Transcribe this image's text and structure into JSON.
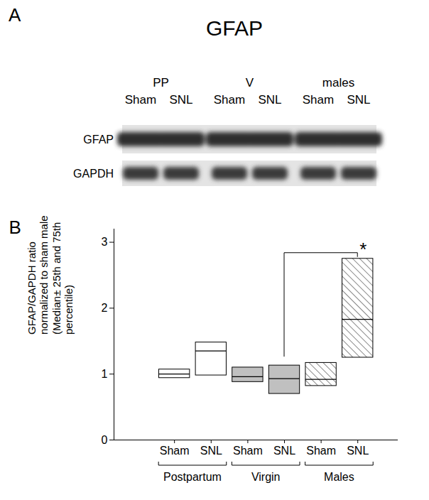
{
  "panel_a": {
    "label": "A",
    "title": "GFAP",
    "groups": [
      "PP",
      "V",
      "males"
    ],
    "lanes": [
      "Sham",
      "SNL"
    ],
    "rows": [
      "GFAP",
      "GAPDH"
    ]
  },
  "chart_data": {
    "type": "box",
    "panel_label": "B",
    "ylabel": "GFAP/GAPDH ratio\nnormalized to sham male\n(Median± 25th and 75th\npercentile)",
    "categories": [
      "Sham",
      "SNL"
    ],
    "series": [
      {
        "name": "Postpartum",
        "color": "#ffffff",
        "line_style": "solid",
        "q1": [
          0.94,
          0.98
        ],
        "median": [
          1.0,
          1.35
        ],
        "q3": [
          1.07,
          1.48
        ]
      },
      {
        "name": "Virgin",
        "color": "#c0c0c0",
        "line_style": "solid",
        "q1": [
          0.88,
          0.7
        ],
        "median": [
          0.96,
          0.93
        ],
        "q3": [
          1.1,
          1.13
        ]
      },
      {
        "name": "Males",
        "color": "#ffffff",
        "line_style": "hatched",
        "q1": [
          0.82,
          1.25
        ],
        "median": [
          0.92,
          1.83
        ],
        "q3": [
          1.17,
          2.75
        ]
      }
    ],
    "ylim": [
      0,
      3.2
    ],
    "yticks": [
      0,
      1,
      2,
      3
    ],
    "annotations": [
      {
        "text": "*",
        "from": {
          "series": "Virgin",
          "category": "SNL"
        },
        "to": {
          "series": "Males",
          "category": "SNL"
        }
      }
    ]
  }
}
